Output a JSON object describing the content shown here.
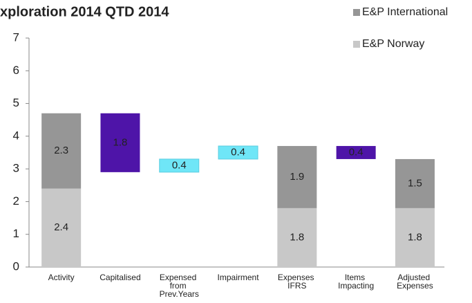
{
  "chart_data": {
    "type": "waterfall",
    "title": "xploration 2014 QTD 2014",
    "categories": [
      "Activity",
      "Capitalised",
      "Expensed from Prev.Years",
      "Impairment",
      "Expenses IFRS",
      "Items Impacting",
      "Adjusted Expenses"
    ],
    "series": [
      {
        "name": "E&P Norway",
        "color": "#c8c8c8",
        "values": [
          2.4,
          null,
          null,
          null,
          1.8,
          null,
          1.8
        ]
      },
      {
        "name": "E&P International",
        "color": "#969696",
        "values": [
          2.3,
          null,
          null,
          null,
          1.9,
          null,
          1.5
        ]
      }
    ],
    "changes": {
      "values": [
        null,
        -1.8,
        0.4,
        0.4,
        null,
        -0.4,
        null
      ],
      "value_labels": [
        null,
        "1.8",
        "0.4",
        "0.4",
        null,
        "0.4",
        null
      ],
      "colors": [
        null,
        "#4e14a8",
        "#6fe6f7",
        "#6fe6f7",
        null,
        "#4e14a8",
        null
      ]
    },
    "ylim": [
      0,
      7
    ],
    "yticks": [
      0,
      1,
      2,
      3,
      4,
      5,
      6,
      7
    ],
    "grid": false
  }
}
